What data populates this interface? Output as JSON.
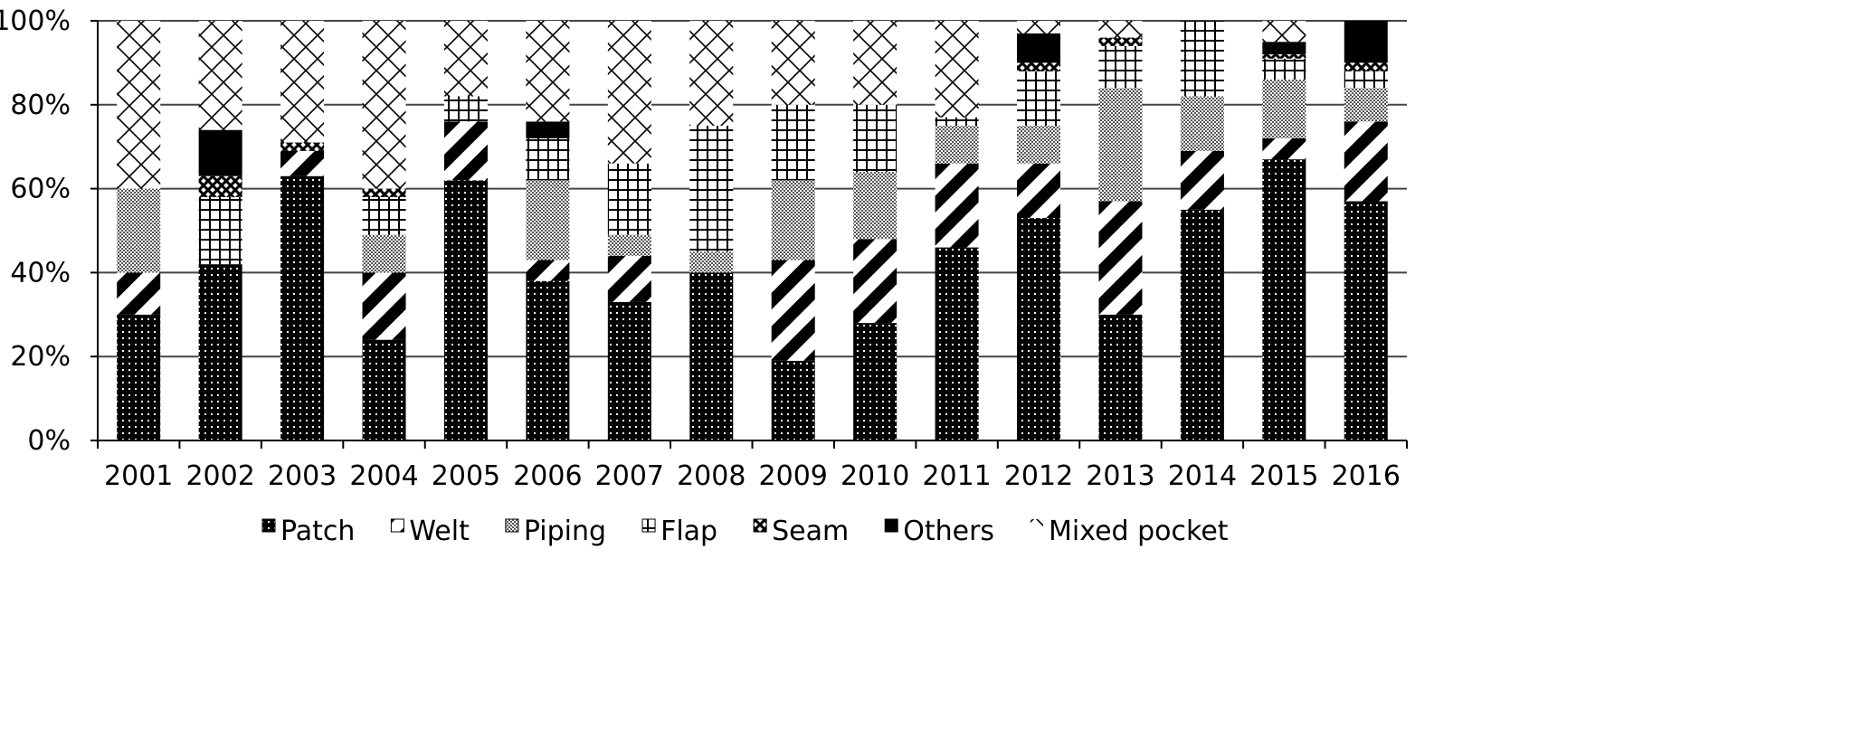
{
  "chart_data": {
    "type": "bar",
    "stacked": true,
    "percent": true,
    "title": "",
    "xlabel": "",
    "ylabel": "",
    "ylim": [
      0,
      100
    ],
    "yticks": [
      "0%",
      "20%",
      "40%",
      "60%",
      "80%",
      "100%"
    ],
    "grid": true,
    "legend_position": "bottom",
    "categories": [
      "2001",
      "2002",
      "2003",
      "2004",
      "2005",
      "2006",
      "2007",
      "2008",
      "2009",
      "2010",
      "2011",
      "2012",
      "2013",
      "2014",
      "2015",
      "2016"
    ],
    "series": [
      {
        "name": "Patch",
        "pattern": "dots",
        "values": [
          30,
          42,
          63,
          24,
          62,
          38,
          33,
          40,
          19,
          28,
          46,
          53,
          30,
          55,
          67,
          57
        ]
      },
      {
        "name": "Welt",
        "pattern": "diagonal-stripes",
        "values": [
          10,
          0,
          6,
          16,
          14,
          5,
          11,
          0,
          24,
          20,
          20,
          13,
          27,
          14,
          5,
          19
        ]
      },
      {
        "name": "Piping",
        "pattern": "fine-checks",
        "values": [
          20,
          0,
          0,
          9,
          0,
          19,
          5,
          5,
          19,
          16,
          9,
          9,
          27,
          13,
          14,
          8
        ]
      },
      {
        "name": "Flap",
        "pattern": "grid",
        "values": [
          0,
          16,
          0,
          9,
          6,
          10,
          17,
          30,
          18,
          16,
          2,
          13,
          10,
          18,
          5,
          4
        ]
      },
      {
        "name": "Seam",
        "pattern": "bowtie",
        "values": [
          0,
          5,
          2,
          2,
          0,
          0,
          0,
          0,
          0,
          0,
          0,
          2,
          2,
          0,
          1,
          2
        ]
      },
      {
        "name": "Others",
        "pattern": "solid",
        "values": [
          0,
          11,
          0,
          0,
          0,
          4,
          0,
          0,
          0,
          0,
          0,
          7,
          0,
          0,
          3,
          10
        ]
      },
      {
        "name": "Mixed pocket",
        "pattern": "crosshatch",
        "values": [
          40,
          26,
          29,
          40,
          18,
          24,
          34,
          25,
          20,
          20,
          23,
          3,
          4,
          0,
          5,
          0
        ]
      }
    ]
  }
}
